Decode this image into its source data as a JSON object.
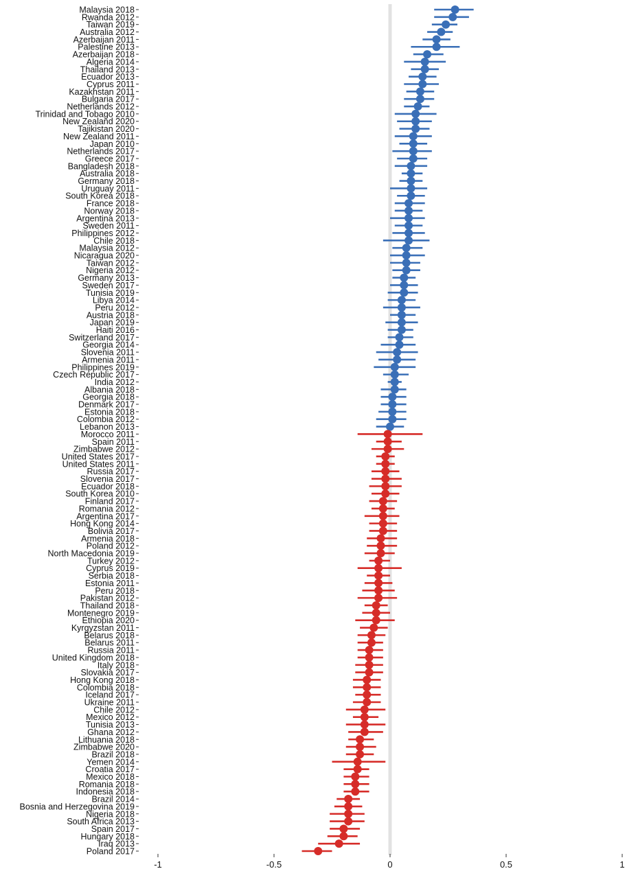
{
  "chart_data": {
    "type": "scatter",
    "xlim": [
      -1,
      1
    ],
    "x_ticks": [
      -1,
      -0.5,
      0,
      0.5,
      1
    ],
    "x_tick_labels": [
      "-1",
      "-0.5",
      "0",
      "0.5",
      "1"
    ],
    "reference_line": 0,
    "grid": false,
    "colors": {
      "positive": "#3a6fb7",
      "negative": "#d62c28",
      "reference": "#e2e2e2"
    },
    "points": [
      {
        "label": "Malaysia 2018",
        "est": 0.28,
        "lo": 0.19,
        "hi": 0.36
      },
      {
        "label": "Rwanda 2012",
        "est": 0.27,
        "lo": 0.19,
        "hi": 0.34
      },
      {
        "label": "Taiwan 2019",
        "est": 0.24,
        "lo": 0.18,
        "hi": 0.29
      },
      {
        "label": "Australia 2012",
        "est": 0.22,
        "lo": 0.16,
        "hi": 0.27
      },
      {
        "label": "Azerbaijan 2011",
        "est": 0.2,
        "lo": 0.14,
        "hi": 0.26
      },
      {
        "label": "Palestine 2013",
        "est": 0.2,
        "lo": 0.09,
        "hi": 0.3
      },
      {
        "label": "Azerbaijan 2018",
        "est": 0.16,
        "lo": 0.1,
        "hi": 0.23
      },
      {
        "label": "Algeria 2014",
        "est": 0.15,
        "lo": 0.06,
        "hi": 0.24
      },
      {
        "label": "Thailand 2013",
        "est": 0.15,
        "lo": 0.09,
        "hi": 0.21
      },
      {
        "label": "Ecuador 2013",
        "est": 0.14,
        "lo": 0.08,
        "hi": 0.2
      },
      {
        "label": "Cyprus 2011",
        "est": 0.14,
        "lo": 0.06,
        "hi": 0.21
      },
      {
        "label": "Kazakhstan 2011",
        "est": 0.13,
        "lo": 0.07,
        "hi": 0.19
      },
      {
        "label": "Bulgaria 2017",
        "est": 0.13,
        "lo": 0.06,
        "hi": 0.19
      },
      {
        "label": "Netherlands 2012",
        "est": 0.12,
        "lo": 0.06,
        "hi": 0.17
      },
      {
        "label": "Trinidad and Tobago 2010",
        "est": 0.11,
        "lo": 0.02,
        "hi": 0.2
      },
      {
        "label": "New Zealand 2020",
        "est": 0.11,
        "lo": 0.03,
        "hi": 0.18
      },
      {
        "label": "Tajikistan 2020",
        "est": 0.11,
        "lo": 0.04,
        "hi": 0.17
      },
      {
        "label": "New Zealand 2011",
        "est": 0.1,
        "lo": 0.02,
        "hi": 0.18
      },
      {
        "label": "Japan 2010",
        "est": 0.1,
        "lo": 0.04,
        "hi": 0.16
      },
      {
        "label": "Netherlands 2017",
        "est": 0.1,
        "lo": 0.01,
        "hi": 0.18
      },
      {
        "label": "Greece 2017",
        "est": 0.1,
        "lo": 0.03,
        "hi": 0.16
      },
      {
        "label": "Bangladesh 2018",
        "est": 0.09,
        "lo": 0.02,
        "hi": 0.16
      },
      {
        "label": "Australia 2018",
        "est": 0.09,
        "lo": 0.05,
        "hi": 0.14
      },
      {
        "label": "Germany 2018",
        "est": 0.09,
        "lo": 0.04,
        "hi": 0.14
      },
      {
        "label": "Uruguay 2011",
        "est": 0.09,
        "lo": 0.0,
        "hi": 0.16
      },
      {
        "label": "South Korea 2018",
        "est": 0.09,
        "lo": 0.03,
        "hi": 0.15
      },
      {
        "label": "France 2018",
        "est": 0.08,
        "lo": 0.02,
        "hi": 0.15
      },
      {
        "label": "Norway 2018",
        "est": 0.08,
        "lo": 0.02,
        "hi": 0.14
      },
      {
        "label": "Argentina 2013",
        "est": 0.08,
        "lo": 0.0,
        "hi": 0.15
      },
      {
        "label": "Sweden 2011",
        "est": 0.08,
        "lo": 0.02,
        "hi": 0.14
      },
      {
        "label": "Philippines 2012",
        "est": 0.08,
        "lo": 0.01,
        "hi": 0.15
      },
      {
        "label": "Chile 2018",
        "est": 0.08,
        "lo": -0.03,
        "hi": 0.17
      },
      {
        "label": "Malaysia 2012",
        "est": 0.07,
        "lo": 0.01,
        "hi": 0.14
      },
      {
        "label": "Nicaragua 2020",
        "est": 0.07,
        "lo": 0.0,
        "hi": 0.15
      },
      {
        "label": "Taiwan 2012",
        "est": 0.07,
        "lo": 0.0,
        "hi": 0.13
      },
      {
        "label": "Nigeria 2012",
        "est": 0.07,
        "lo": 0.01,
        "hi": 0.13
      },
      {
        "label": "Germany 2013",
        "est": 0.06,
        "lo": 0.01,
        "hi": 0.11
      },
      {
        "label": "Sweden 2017",
        "est": 0.06,
        "lo": 0.0,
        "hi": 0.12
      },
      {
        "label": "Tunisia 2019",
        "est": 0.06,
        "lo": -0.01,
        "hi": 0.12
      },
      {
        "label": "Libya 2014",
        "est": 0.05,
        "lo": -0.01,
        "hi": 0.11
      },
      {
        "label": "Peru 2012",
        "est": 0.05,
        "lo": -0.03,
        "hi": 0.13
      },
      {
        "label": "Austria 2018",
        "est": 0.05,
        "lo": 0.0,
        "hi": 0.11
      },
      {
        "label": "Japan 2019",
        "est": 0.05,
        "lo": -0.02,
        "hi": 0.12
      },
      {
        "label": "Haiti 2016",
        "est": 0.05,
        "lo": -0.01,
        "hi": 0.1
      },
      {
        "label": "Switzerland 2017",
        "est": 0.04,
        "lo": -0.01,
        "hi": 0.1
      },
      {
        "label": "Georgia 2014",
        "est": 0.04,
        "lo": -0.04,
        "hi": 0.11
      },
      {
        "label": "Slovenia 2011",
        "est": 0.03,
        "lo": -0.06,
        "hi": 0.12
      },
      {
        "label": "Armenia 2011",
        "est": 0.03,
        "lo": -0.05,
        "hi": 0.11
      },
      {
        "label": "Philippines 2019",
        "est": 0.02,
        "lo": -0.07,
        "hi": 0.11
      },
      {
        "label": "Czech Republic 2017",
        "est": 0.02,
        "lo": -0.03,
        "hi": 0.08
      },
      {
        "label": "India 2012",
        "est": 0.02,
        "lo": -0.01,
        "hi": 0.05
      },
      {
        "label": "Albania 2018",
        "est": 0.02,
        "lo": -0.04,
        "hi": 0.07
      },
      {
        "label": "Georgia 2018",
        "est": 0.01,
        "lo": -0.04,
        "hi": 0.07
      },
      {
        "label": "Denmark 2017",
        "est": 0.01,
        "lo": -0.04,
        "hi": 0.07
      },
      {
        "label": "Estonia 2018",
        "est": 0.01,
        "lo": -0.05,
        "hi": 0.07
      },
      {
        "label": "Colombia 2012",
        "est": 0.01,
        "lo": -0.06,
        "hi": 0.07
      },
      {
        "label": "Lebanon 2013",
        "est": 0.0,
        "lo": -0.06,
        "hi": 0.06
      },
      {
        "label": "Morocco 2011",
        "est": -0.01,
        "lo": -0.14,
        "hi": 0.14
      },
      {
        "label": "Spain 2011",
        "est": -0.01,
        "lo": -0.06,
        "hi": 0.05
      },
      {
        "label": "Zimbabwe 2012",
        "est": -0.01,
        "lo": -0.08,
        "hi": 0.06
      },
      {
        "label": "United States 2017",
        "est": -0.02,
        "lo": -0.06,
        "hi": 0.02
      },
      {
        "label": "United States 2011",
        "est": -0.02,
        "lo": -0.06,
        "hi": 0.02
      },
      {
        "label": "Russia 2017",
        "est": -0.02,
        "lo": -0.08,
        "hi": 0.04
      },
      {
        "label": "Slovenia 2017",
        "est": -0.02,
        "lo": -0.08,
        "hi": 0.05
      },
      {
        "label": "Ecuador 2018",
        "est": -0.02,
        "lo": -0.09,
        "hi": 0.05
      },
      {
        "label": "South Korea 2010",
        "est": -0.02,
        "lo": -0.08,
        "hi": 0.04
      },
      {
        "label": "Finland 2017",
        "est": -0.03,
        "lo": -0.09,
        "hi": 0.03
      },
      {
        "label": "Romania 2012",
        "est": -0.03,
        "lo": -0.08,
        "hi": 0.02
      },
      {
        "label": "Argentina 2017",
        "est": -0.03,
        "lo": -0.11,
        "hi": 0.04
      },
      {
        "label": "Hong Kong 2014",
        "est": -0.03,
        "lo": -0.09,
        "hi": 0.03
      },
      {
        "label": "Bolivia 2017",
        "est": -0.03,
        "lo": -0.09,
        "hi": 0.03
      },
      {
        "label": "Armenia 2018",
        "est": -0.04,
        "lo": -0.1,
        "hi": 0.03
      },
      {
        "label": "Poland 2012",
        "est": -0.04,
        "lo": -0.1,
        "hi": 0.03
      },
      {
        "label": "North Macedonia 2019",
        "est": -0.04,
        "lo": -0.11,
        "hi": 0.02
      },
      {
        "label": "Turkey 2012",
        "est": -0.05,
        "lo": -0.09,
        "hi": 0.0
      },
      {
        "label": "Cyprus 2019",
        "est": -0.05,
        "lo": -0.14,
        "hi": 0.05
      },
      {
        "label": "Serbia 2018",
        "est": -0.05,
        "lo": -0.1,
        "hi": 0.0
      },
      {
        "label": "Estonia 2011",
        "est": -0.05,
        "lo": -0.11,
        "hi": 0.01
      },
      {
        "label": "Peru 2018",
        "est": -0.05,
        "lo": -0.12,
        "hi": 0.02
      },
      {
        "label": "Pakistan 2012",
        "est": -0.05,
        "lo": -0.14,
        "hi": 0.03
      },
      {
        "label": "Thailand 2018",
        "est": -0.06,
        "lo": -0.11,
        "hi": -0.01
      },
      {
        "label": "Montenegro 2019",
        "est": -0.06,
        "lo": -0.12,
        "hi": 0.0
      },
      {
        "label": "Ethiopia 2020",
        "est": -0.06,
        "lo": -0.15,
        "hi": 0.02
      },
      {
        "label": "Kyrgyzstan 2011",
        "est": -0.07,
        "lo": -0.13,
        "hi": -0.01
      },
      {
        "label": "Belarus 2018",
        "est": -0.08,
        "lo": -0.14,
        "hi": -0.02
      },
      {
        "label": "Belarus 2011",
        "est": -0.08,
        "lo": -0.14,
        "hi": -0.03
      },
      {
        "label": "Russia 2011",
        "est": -0.09,
        "lo": -0.14,
        "hi": -0.03
      },
      {
        "label": "United Kingdom 2018",
        "est": -0.09,
        "lo": -0.14,
        "hi": -0.03
      },
      {
        "label": "Italy 2018",
        "est": -0.09,
        "lo": -0.15,
        "hi": -0.03
      },
      {
        "label": "Slovakia 2017",
        "est": -0.09,
        "lo": -0.15,
        "hi": -0.03
      },
      {
        "label": "Hong Kong 2018",
        "est": -0.1,
        "lo": -0.16,
        "hi": -0.04
      },
      {
        "label": "Colombia 2018",
        "est": -0.1,
        "lo": -0.16,
        "hi": -0.04
      },
      {
        "label": "Iceland 2017",
        "est": -0.1,
        "lo": -0.15,
        "hi": -0.04
      },
      {
        "label": "Ukraine 2011",
        "est": -0.1,
        "lo": -0.16,
        "hi": -0.04
      },
      {
        "label": "Chile 2012",
        "est": -0.11,
        "lo": -0.19,
        "hi": -0.02
      },
      {
        "label": "Mexico 2012",
        "est": -0.11,
        "lo": -0.16,
        "hi": -0.05
      },
      {
        "label": "Tunisia 2013",
        "est": -0.11,
        "lo": -0.19,
        "hi": -0.02
      },
      {
        "label": "Ghana 2012",
        "est": -0.11,
        "lo": -0.18,
        "hi": -0.03
      },
      {
        "label": "Lithuania 2018",
        "est": -0.13,
        "lo": -0.18,
        "hi": -0.07
      },
      {
        "label": "Zimbabwe 2020",
        "est": -0.13,
        "lo": -0.19,
        "hi": -0.06
      },
      {
        "label": "Brazil 2018",
        "est": -0.13,
        "lo": -0.19,
        "hi": -0.07
      },
      {
        "label": "Yemen 2014",
        "est": -0.14,
        "lo": -0.25,
        "hi": -0.02
      },
      {
        "label": "Croatia 2017",
        "est": -0.14,
        "lo": -0.2,
        "hi": -0.09
      },
      {
        "label": "Mexico 2018",
        "est": -0.15,
        "lo": -0.2,
        "hi": -0.09
      },
      {
        "label": "Romania 2018",
        "est": -0.15,
        "lo": -0.2,
        "hi": -0.09
      },
      {
        "label": "Indonesia 2018",
        "est": -0.15,
        "lo": -0.2,
        "hi": -0.09
      },
      {
        "label": "Brazil 2014",
        "est": -0.18,
        "lo": -0.23,
        "hi": -0.13
      },
      {
        "label": "Bosnia and Herzegovina 2019",
        "est": -0.18,
        "lo": -0.24,
        "hi": -0.12
      },
      {
        "label": "Nigeria 2018",
        "est": -0.18,
        "lo": -0.26,
        "hi": -0.11
      },
      {
        "label": "South Africa 2013",
        "est": -0.18,
        "lo": -0.26,
        "hi": -0.11
      },
      {
        "label": "Spain 2017",
        "est": -0.2,
        "lo": -0.26,
        "hi": -0.13
      },
      {
        "label": "Hungary 2018",
        "est": -0.2,
        "lo": -0.27,
        "hi": -0.14
      },
      {
        "label": "Iraq 2013",
        "est": -0.22,
        "lo": -0.31,
        "hi": -0.13
      },
      {
        "label": "Poland 2017",
        "est": -0.31,
        "lo": -0.38,
        "hi": -0.25
      }
    ]
  }
}
